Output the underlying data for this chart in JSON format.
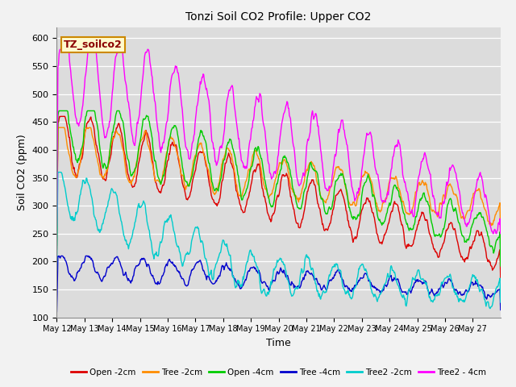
{
  "title": "Tonzi Soil CO2 Profile: Upper CO2",
  "xlabel": "Time",
  "ylabel": "Soil CO2 (ppm)",
  "ylim": [
    100,
    620
  ],
  "yticks": [
    100,
    150,
    200,
    250,
    300,
    350,
    400,
    450,
    500,
    550,
    600
  ],
  "annotation_text": "TZ_soilco2",
  "annotation_color": "#8B0000",
  "annotation_bg": "#FFFACD",
  "annotation_border": "#CC8800",
  "fig_bg": "#F2F2F2",
  "plot_bg": "#DCDCDC",
  "grid_color": "#FFFFFF",
  "series": [
    {
      "label": "Open -2cm",
      "color": "#DD0000"
    },
    {
      "label": "Tree -2cm",
      "color": "#FF8C00"
    },
    {
      "label": "Open -4cm",
      "color": "#00CC00"
    },
    {
      "label": "Tree -4cm",
      "color": "#0000CC"
    },
    {
      "label": "Tree2 -2cm",
      "color": "#00CCCC"
    },
    {
      "label": "Tree2 - 4cm",
      "color": "#FF00FF"
    }
  ],
  "x_tick_labels": [
    "May 12",
    "May 13",
    "May 14",
    "May 15",
    "May 16",
    "May 17",
    "May 18",
    "May 19",
    "May 20",
    "May 21",
    "May 22",
    "May 23",
    "May 24",
    "May 25",
    "May 26",
    "May 27"
  ],
  "n_days": 16,
  "pts_per_day": 48
}
